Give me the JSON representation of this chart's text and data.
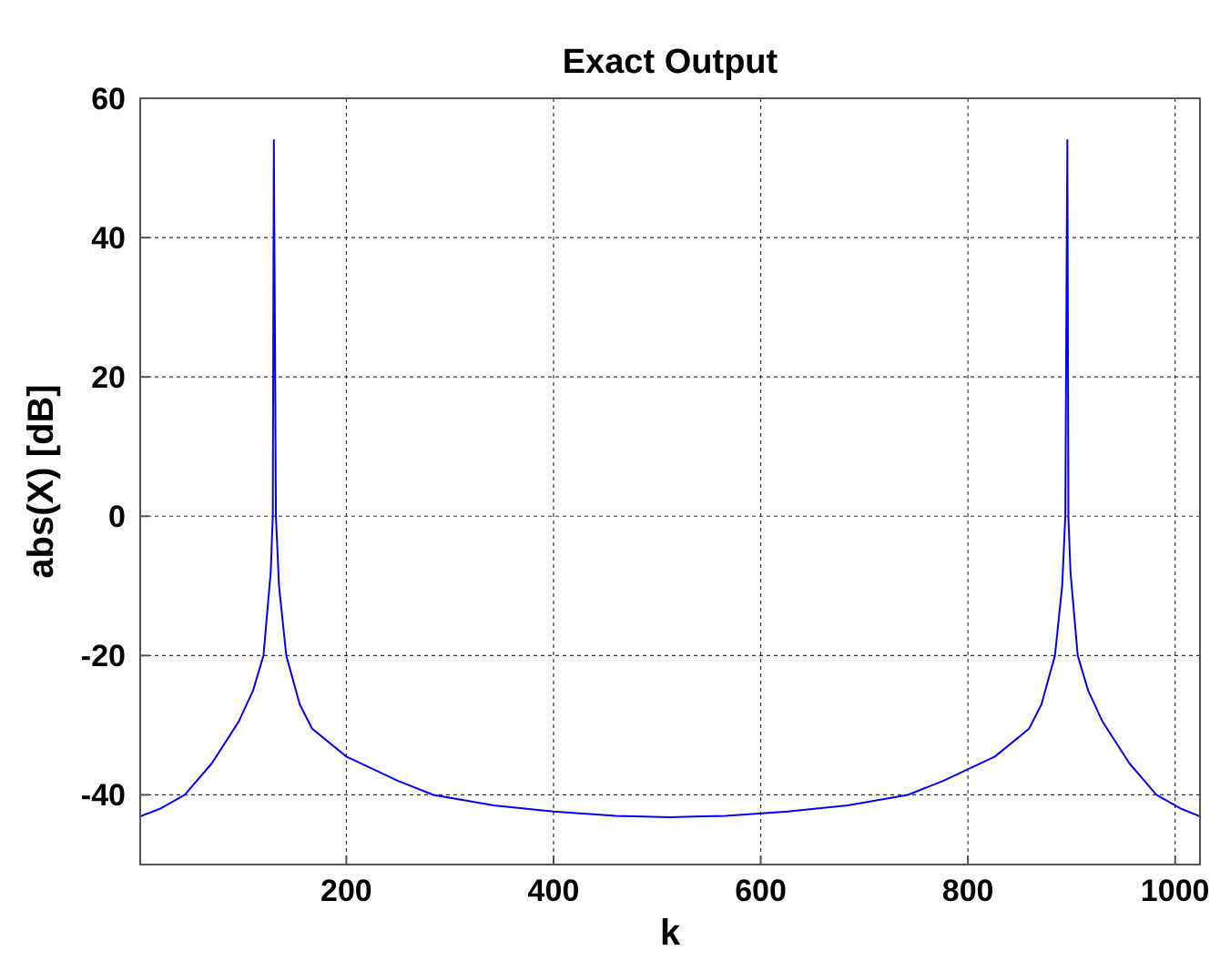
{
  "chart_data": {
    "type": "line",
    "title": "Exact Output",
    "xlabel": "k",
    "ylabel": "abs(X) [dB]",
    "xlim": [
      1,
      1024
    ],
    "ylim": [
      -50,
      60
    ],
    "xticks": [
      200,
      400,
      600,
      800,
      1000
    ],
    "yticks": [
      -40,
      -20,
      0,
      20,
      40,
      60
    ],
    "grid": true,
    "marker": "none",
    "line_style": "solid",
    "series": [
      {
        "color": "#0000ff",
        "x": [
          1,
          20,
          44,
          70,
          96,
          110,
          120,
          127,
          129,
          130,
          131,
          132,
          135,
          142,
          155,
          167,
          200,
          250,
          284,
          342,
          400,
          460,
          512,
          566,
          626,
          684,
          742,
          776,
          826,
          859,
          871,
          884,
          891,
          894,
          895,
          896,
          897,
          899,
          906,
          916,
          930,
          956,
          982,
          1006,
          1024
        ],
        "values": [
          -43.1,
          -42,
          -40,
          -35.5,
          -29.5,
          -25,
          -20,
          -8,
          0,
          54,
          27.5,
          0,
          -10,
          -20,
          -27,
          -30.5,
          -34.5,
          -38,
          -40,
          -41.5,
          -42.4,
          -43,
          -43.2,
          -43,
          -42.4,
          -41.5,
          -40,
          -38,
          -34.5,
          -30.5,
          -27,
          -20,
          -10,
          0,
          27.5,
          54,
          0,
          -8,
          -20,
          -25,
          -29.5,
          -35.5,
          -40,
          -42,
          -43.1
        ]
      }
    ]
  }
}
